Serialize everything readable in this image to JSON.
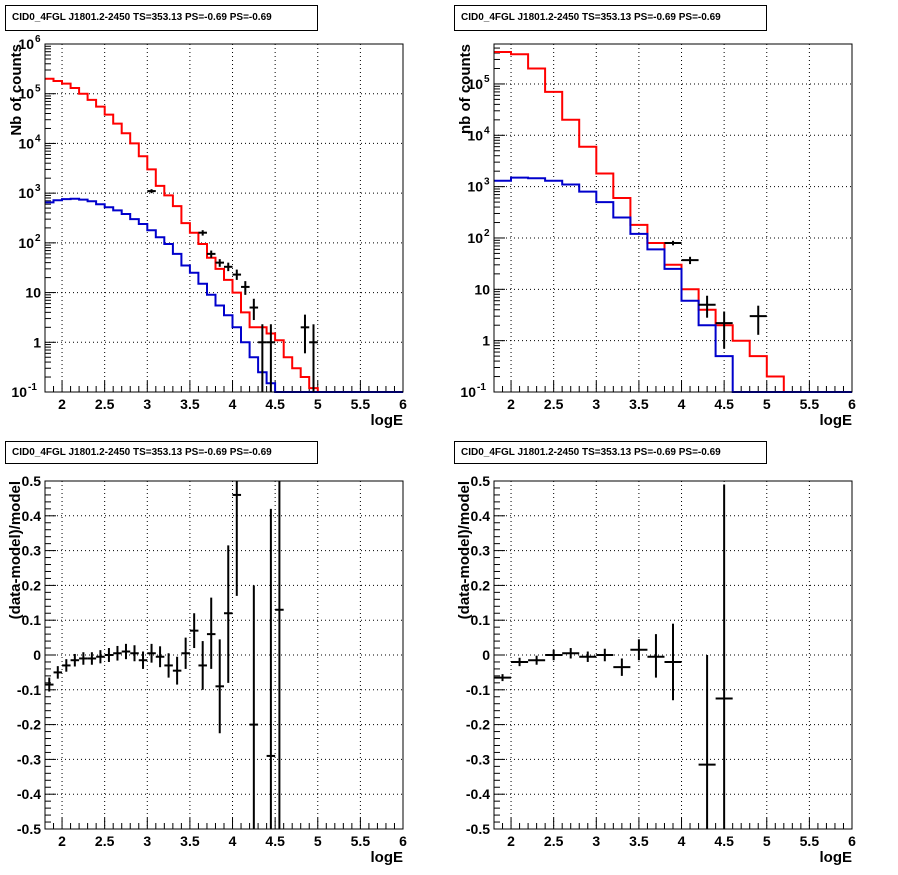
{
  "chart_data": [
    {
      "id": "p1",
      "type": "histogram",
      "title": "CID0_4FGL J1801.2-2450 TS=353.13 PS=-0.69 PS=-0.69",
      "xlabel": "logE",
      "ylabel": "Nb of counts",
      "xlim": [
        1.8,
        6.0
      ],
      "ylim": [
        0.1,
        1000000
      ],
      "yscale": "log",
      "xticks": [
        "2",
        "2.5",
        "3",
        "3.5",
        "4",
        "4.5",
        "5",
        "5.5",
        "6"
      ],
      "yticks": [
        "10^-1",
        "1",
        "10",
        "10^2",
        "10^3",
        "10^4",
        "10^5",
        "10^6"
      ],
      "grid": true,
      "series": [
        {
          "color": "#ff0000",
          "edges": [
            1.8,
            1.9,
            2.0,
            2.1,
            2.2,
            2.3,
            2.4,
            2.5,
            2.6,
            2.7,
            2.8,
            2.9,
            3.0,
            3.1,
            3.2,
            3.3,
            3.4,
            3.5,
            3.6,
            3.7,
            3.8,
            3.9,
            4.0,
            4.1,
            4.2,
            4.3,
            4.4,
            4.5,
            4.6,
            4.7,
            4.8,
            4.9,
            5.0,
            5.1,
            5.2,
            5.3,
            5.4,
            5.5,
            5.6,
            5.7,
            5.8,
            5.9,
            6.0
          ],
          "values": [
            200000,
            180000,
            160000,
            130000,
            100000,
            75000,
            55000,
            38000,
            25000,
            16000,
            10000,
            5500,
            3000,
            1400,
            900,
            550,
            250,
            160,
            95,
            50,
            30,
            18,
            10,
            4,
            2,
            2,
            1.5,
            1.1,
            0.5,
            0.3,
            0.2,
            0.12,
            0.1,
            0.1,
            0.1,
            0.1,
            0.1,
            0.1,
            0.1,
            0.1,
            0.1,
            0.1
          ]
        },
        {
          "color": "#0000cc",
          "edges": [
            1.8,
            1.9,
            2.0,
            2.1,
            2.2,
            2.3,
            2.4,
            2.5,
            2.6,
            2.7,
            2.8,
            2.9,
            3.0,
            3.1,
            3.2,
            3.3,
            3.4,
            3.5,
            3.6,
            3.7,
            3.8,
            3.9,
            4.0,
            4.1,
            4.2,
            4.3,
            4.4,
            4.5,
            4.6,
            4.7,
            4.8,
            4.9,
            5.0,
            5.1,
            5.2,
            5.3,
            5.4,
            5.5,
            5.6,
            5.7,
            5.8,
            5.9,
            6.0
          ],
          "values": [
            650,
            720,
            760,
            770,
            740,
            690,
            600,
            520,
            450,
            380,
            300,
            240,
            180,
            130,
            95,
            60,
            35,
            25,
            15,
            9,
            5.5,
            3.5,
            2,
            1,
            0.5,
            0.25,
            0.15,
            0.1,
            0.1,
            0.1,
            0.1,
            0.1,
            0.1,
            0.1,
            0.1,
            0.1,
            0.1,
            0.1,
            0.1,
            0.1,
            0.1,
            0.1
          ]
        }
      ],
      "points": [
        {
          "x": 3.05,
          "y": 1100,
          "xerr": 0.05,
          "ylo": 1000,
          "yhi": 1200
        },
        {
          "x": 3.65,
          "y": 160,
          "xerr": 0.05,
          "ylo": 140,
          "yhi": 180
        },
        {
          "x": 3.75,
          "y": 60,
          "xerr": 0.05,
          "ylo": 50,
          "yhi": 70
        },
        {
          "x": 3.85,
          "y": 40,
          "xerr": 0.05,
          "ylo": 33,
          "yhi": 47
        },
        {
          "x": 3.95,
          "y": 33,
          "xerr": 0.05,
          "ylo": 27,
          "yhi": 40
        },
        {
          "x": 4.05,
          "y": 23,
          "xerr": 0.05,
          "ylo": 18,
          "yhi": 29
        },
        {
          "x": 4.15,
          "y": 13,
          "xerr": 0.05,
          "ylo": 9,
          "yhi": 17
        },
        {
          "x": 4.25,
          "y": 5,
          "xerr": 0.05,
          "ylo": 2.8,
          "yhi": 7.5
        },
        {
          "x": 4.35,
          "y": 1,
          "xerr": 0.05,
          "ylo": 0.1,
          "yhi": 2.3
        },
        {
          "x": 4.45,
          "y": 1,
          "xerr": 0.05,
          "ylo": 0.1,
          "yhi": 2.3
        },
        {
          "x": 4.85,
          "y": 2,
          "xerr": 0.05,
          "ylo": 0.6,
          "yhi": 3.6
        },
        {
          "x": 4.95,
          "y": 1,
          "xerr": 0.05,
          "ylo": 0.1,
          "yhi": 2.3
        }
      ]
    },
    {
      "id": "p2",
      "type": "histogram",
      "title": "CID0_4FGL J1801.2-2450 TS=353.13 PS=-0.69 PS=-0.69",
      "xlabel": "logE",
      "ylabel": "nb of counts",
      "xlim": [
        1.8,
        6.0
      ],
      "ylim": [
        0.1,
        600000
      ],
      "yscale": "log",
      "xticks": [
        "2",
        "2.5",
        "3",
        "3.5",
        "4",
        "4.5",
        "5",
        "5.5",
        "6"
      ],
      "yticks": [
        "10^-1",
        "1",
        "10",
        "10^2",
        "10^3",
        "10^4",
        "10^5"
      ],
      "grid": true,
      "series": [
        {
          "color": "#ff0000",
          "edges": [
            1.8,
            2.0,
            2.2,
            2.4,
            2.6,
            2.8,
            3.0,
            3.2,
            3.4,
            3.6,
            3.8,
            4.0,
            4.2,
            4.4,
            4.6,
            4.8,
            5.0,
            5.2,
            5.4,
            5.6,
            5.8,
            6.0
          ],
          "values": [
            420000,
            380000,
            200000,
            70000,
            20000,
            6000,
            1800,
            600,
            180,
            80,
            30,
            10,
            4,
            2,
            1,
            0.5,
            0.2,
            0.1,
            0.1,
            0.1,
            0.1
          ]
        },
        {
          "color": "#0000cc",
          "edges": [
            1.8,
            2.0,
            2.2,
            2.4,
            2.6,
            2.8,
            3.0,
            3.2,
            3.4,
            3.6,
            3.8,
            4.0,
            4.2,
            4.4,
            4.6,
            4.8,
            5.0,
            5.2,
            5.4,
            5.6,
            5.8,
            6.0
          ],
          "values": [
            1300,
            1500,
            1450,
            1300,
            1100,
            800,
            500,
            250,
            120,
            60,
            25,
            6,
            2,
            0.5,
            0.1,
            0.1,
            0.1,
            0.1,
            0.1,
            0.1,
            0.1
          ]
        }
      ],
      "points": [
        {
          "x": 3.9,
          "y": 80,
          "xerr": 0.1,
          "ylo": 72,
          "yhi": 88
        },
        {
          "x": 4.1,
          "y": 37,
          "xerr": 0.1,
          "ylo": 31,
          "yhi": 43
        },
        {
          "x": 4.3,
          "y": 5,
          "xerr": 0.1,
          "ylo": 2.8,
          "yhi": 7.5
        },
        {
          "x": 4.5,
          "y": 2.2,
          "xerr": 0.1,
          "ylo": 0.7,
          "yhi": 3.7
        },
        {
          "x": 4.9,
          "y": 3,
          "xerr": 0.1,
          "ylo": 1.3,
          "yhi": 4.8
        }
      ]
    },
    {
      "id": "p3",
      "type": "scatter",
      "title": "CID0_4FGL J1801.2-2450 TS=353.13 PS=-0.69 PS=-0.69",
      "xlabel": "logE",
      "ylabel": "(data-model)/model",
      "xlim": [
        1.8,
        6.0
      ],
      "ylim": [
        -0.5,
        0.5
      ],
      "xticks": [
        "2",
        "2.5",
        "3",
        "3.5",
        "4",
        "4.5",
        "5",
        "5.5",
        "6"
      ],
      "yticks": [
        "-0.5",
        "-0.4",
        "-0.3",
        "-0.2",
        "-0.1",
        "0",
        "0.1",
        "0.2",
        "0.3",
        "0.4",
        "0.5"
      ],
      "grid": true,
      "points": [
        {
          "x": 1.85,
          "y": -0.085,
          "xerr": 0.05,
          "ylo": -0.105,
          "yhi": -0.065
        },
        {
          "x": 1.95,
          "y": -0.05,
          "xerr": 0.05,
          "ylo": -0.068,
          "yhi": -0.032
        },
        {
          "x": 2.05,
          "y": -0.03,
          "xerr": 0.05,
          "ylo": -0.048,
          "yhi": -0.012
        },
        {
          "x": 2.15,
          "y": -0.015,
          "xerr": 0.05,
          "ylo": -0.033,
          "yhi": 0.003
        },
        {
          "x": 2.25,
          "y": -0.01,
          "xerr": 0.05,
          "ylo": -0.028,
          "yhi": 0.008
        },
        {
          "x": 2.35,
          "y": -0.01,
          "xerr": 0.05,
          "ylo": -0.028,
          "yhi": 0.008
        },
        {
          "x": 2.45,
          "y": -0.005,
          "xerr": 0.05,
          "ylo": -0.024,
          "yhi": 0.014
        },
        {
          "x": 2.55,
          "y": 0.0,
          "xerr": 0.05,
          "ylo": -0.02,
          "yhi": 0.02
        },
        {
          "x": 2.65,
          "y": 0.005,
          "xerr": 0.05,
          "ylo": -0.016,
          "yhi": 0.026
        },
        {
          "x": 2.75,
          "y": 0.01,
          "xerr": 0.05,
          "ylo": -0.012,
          "yhi": 0.032
        },
        {
          "x": 2.85,
          "y": 0.005,
          "xerr": 0.05,
          "ylo": -0.018,
          "yhi": 0.028
        },
        {
          "x": 2.95,
          "y": -0.015,
          "xerr": 0.05,
          "ylo": -0.04,
          "yhi": 0.01
        },
        {
          "x": 3.05,
          "y": 0.005,
          "xerr": 0.05,
          "ylo": -0.022,
          "yhi": 0.032
        },
        {
          "x": 3.15,
          "y": -0.005,
          "xerr": 0.05,
          "ylo": -0.035,
          "yhi": 0.025
        },
        {
          "x": 3.25,
          "y": -0.03,
          "xerr": 0.05,
          "ylo": -0.065,
          "yhi": 0.005
        },
        {
          "x": 3.35,
          "y": -0.045,
          "xerr": 0.05,
          "ylo": -0.085,
          "yhi": -0.005
        },
        {
          "x": 3.45,
          "y": 0.005,
          "xerr": 0.05,
          "ylo": -0.04,
          "yhi": 0.05
        },
        {
          "x": 3.55,
          "y": 0.07,
          "xerr": 0.05,
          "ylo": 0.02,
          "yhi": 0.12
        },
        {
          "x": 3.65,
          "y": -0.03,
          "xerr": 0.05,
          "ylo": -0.1,
          "yhi": 0.04
        },
        {
          "x": 3.75,
          "y": 0.06,
          "xerr": 0.05,
          "ylo": -0.04,
          "yhi": 0.165
        },
        {
          "x": 3.85,
          "y": -0.09,
          "xerr": 0.05,
          "ylo": -0.225,
          "yhi": 0.045
        },
        {
          "x": 3.95,
          "y": 0.12,
          "xerr": 0.05,
          "ylo": -0.08,
          "yhi": 0.315
        },
        {
          "x": 4.05,
          "y": 0.46,
          "xerr": 0.05,
          "ylo": 0.17,
          "yhi": 0.5
        },
        {
          "x": 4.25,
          "y": -0.2,
          "xerr": 0.05,
          "ylo": -0.5,
          "yhi": 0.2
        },
        {
          "x": 4.45,
          "y": -0.29,
          "xerr": 0.05,
          "ylo": -0.5,
          "yhi": 0.42
        },
        {
          "x": 4.55,
          "y": 0.13,
          "xerr": 0.05,
          "ylo": -0.5,
          "yhi": 0.5
        }
      ]
    },
    {
      "id": "p4",
      "type": "scatter",
      "title": "CID0_4FGL J1801.2-2450 TS=353.13 PS=-0.69 PS=-0.69",
      "xlabel": "logE",
      "ylabel": "(data-model)/model",
      "xlim": [
        1.8,
        6.0
      ],
      "ylim": [
        -0.5,
        0.5
      ],
      "xticks": [
        "2",
        "2.5",
        "3",
        "3.5",
        "4",
        "4.5",
        "5",
        "5.5",
        "6"
      ],
      "yticks": [
        "-0.5",
        "-0.4",
        "-0.3",
        "-0.2",
        "-0.1",
        "0",
        "0.1",
        "0.2",
        "0.3",
        "0.4",
        "0.5"
      ],
      "grid": true,
      "points": [
        {
          "x": 1.9,
          "y": -0.065,
          "xerr": 0.1,
          "ylo": -0.075,
          "yhi": -0.055
        },
        {
          "x": 2.1,
          "y": -0.02,
          "xerr": 0.1,
          "ylo": -0.032,
          "yhi": -0.008
        },
        {
          "x": 2.3,
          "y": -0.015,
          "xerr": 0.1,
          "ylo": -0.028,
          "yhi": -0.002
        },
        {
          "x": 2.5,
          "y": 0.0,
          "xerr": 0.1,
          "ylo": -0.015,
          "yhi": 0.015
        },
        {
          "x": 2.7,
          "y": 0.005,
          "xerr": 0.1,
          "ylo": -0.01,
          "yhi": 0.02
        },
        {
          "x": 2.9,
          "y": -0.005,
          "xerr": 0.1,
          "ylo": -0.02,
          "yhi": 0.01
        },
        {
          "x": 3.1,
          "y": 0.0,
          "xerr": 0.1,
          "ylo": -0.018,
          "yhi": 0.018
        },
        {
          "x": 3.3,
          "y": -0.035,
          "xerr": 0.1,
          "ylo": -0.06,
          "yhi": -0.01
        },
        {
          "x": 3.5,
          "y": 0.015,
          "xerr": 0.1,
          "ylo": -0.015,
          "yhi": 0.045
        },
        {
          "x": 3.7,
          "y": -0.005,
          "xerr": 0.1,
          "ylo": -0.065,
          "yhi": 0.06
        },
        {
          "x": 3.9,
          "y": -0.02,
          "xerr": 0.1,
          "ylo": -0.13,
          "yhi": 0.09
        },
        {
          "x": 4.3,
          "y": -0.315,
          "xerr": 0.1,
          "ylo": -0.5,
          "yhi": 0.0
        },
        {
          "x": 4.5,
          "y": -0.125,
          "xerr": 0.1,
          "ylo": -0.5,
          "yhi": 0.49
        }
      ]
    }
  ]
}
